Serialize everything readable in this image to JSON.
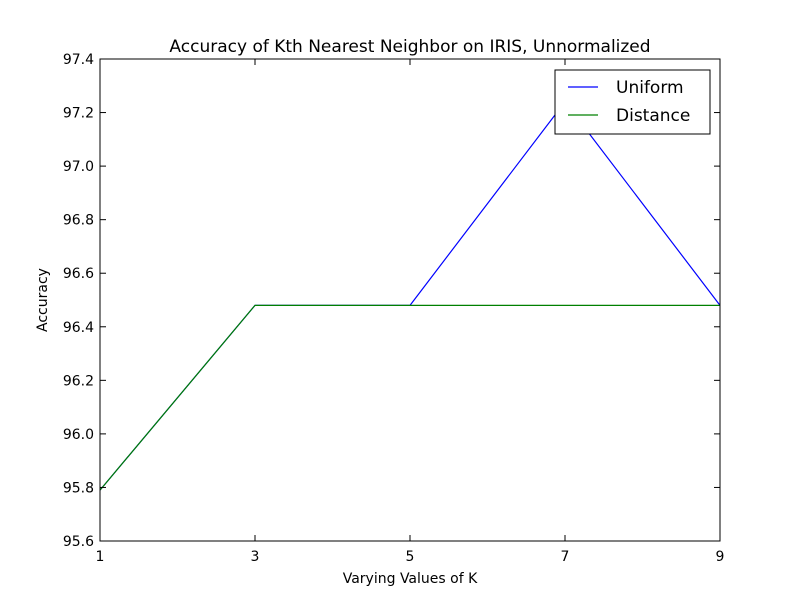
{
  "chart_data": {
    "type": "line",
    "title": "Accuracy of Kth Nearest Neighbor on IRIS, Unnormalized",
    "xlabel": "Varying Values of K",
    "ylabel": "Accuracy",
    "x": [
      1,
      3,
      5,
      7,
      9
    ],
    "xlim": [
      1,
      9
    ],
    "ylim": [
      95.6,
      97.4
    ],
    "xticks": [
      "1",
      "3",
      "5",
      "7",
      "9"
    ],
    "yticks": [
      "95.6",
      "95.8",
      "96.0",
      "96.2",
      "96.4",
      "96.6",
      "96.8",
      "97.0",
      "97.2",
      "97.4"
    ],
    "series": [
      {
        "name": "Uniform",
        "color": "#0000ff",
        "values": [
          95.79,
          96.48,
          96.48,
          97.24,
          96.48
        ]
      },
      {
        "name": "Distance",
        "color": "#008000",
        "values": [
          95.79,
          96.48,
          96.48,
          96.48,
          96.48
        ]
      }
    ],
    "legend": "top-right",
    "grid": false
  }
}
